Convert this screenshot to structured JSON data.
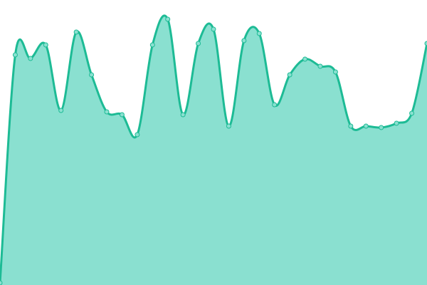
{
  "chart_data": {
    "type": "area",
    "title": "",
    "xlabel": "",
    "ylabel": "",
    "x": [
      0,
      1,
      2,
      3,
      4,
      5,
      6,
      7,
      8,
      9,
      10,
      11,
      12,
      13,
      14,
      15,
      16,
      17,
      18,
      19,
      20,
      21,
      22,
      23,
      24,
      25,
      26,
      27,
      28
    ],
    "values": [
      3,
      323,
      318,
      337,
      245,
      355,
      295,
      243,
      239,
      211,
      337,
      373,
      239,
      339,
      359,
      223,
      343,
      353,
      253,
      295,
      317,
      307,
      299,
      223,
      223,
      221,
      227,
      241,
      339
    ],
    "ylim": [
      0,
      400
    ],
    "grid": false,
    "axes_visible": false,
    "smooth": true,
    "colors": {
      "line": "#1dbb95",
      "fill": "#8ae0d0",
      "point_fill": "#8ae0d0",
      "point_stroke": "#1dbb95"
    }
  }
}
